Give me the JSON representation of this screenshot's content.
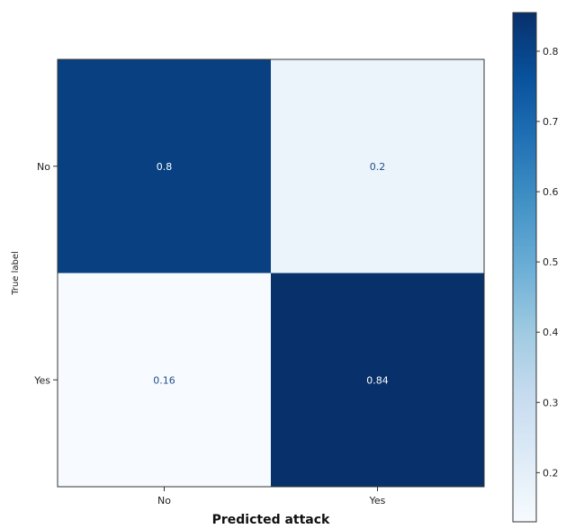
{
  "chart_data": {
    "type": "heatmap",
    "title": "",
    "xlabel": "Predicted attack",
    "ylabel": "True label",
    "x_categories": [
      "No",
      "Yes"
    ],
    "y_categories": [
      "No",
      "Yes"
    ],
    "values": [
      [
        0.8,
        0.2
      ],
      [
        0.16,
        0.84
      ]
    ],
    "cell_labels": [
      [
        "0.8",
        "0.2"
      ],
      [
        "0.16",
        "0.84"
      ]
    ],
    "colormap": "Blues",
    "colorbar": {
      "range": [
        0.16,
        0.84
      ],
      "ticks": [
        0.2,
        0.3,
        0.4,
        0.5,
        0.6,
        0.7,
        0.8
      ],
      "tick_labels": [
        "0.2",
        "0.3",
        "0.4",
        "0.5",
        "0.6",
        "0.7",
        "0.8"
      ]
    },
    "colors": {
      "low": "#f7fbff",
      "high": "#08306b",
      "text_on_dark": "#ffffff",
      "text_on_light": "#1f4e8c"
    }
  }
}
